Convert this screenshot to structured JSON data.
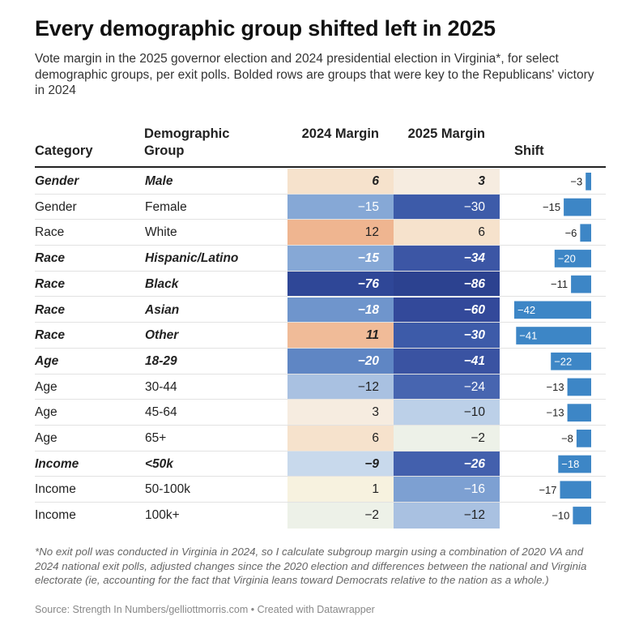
{
  "title": "Every demographic group shifted left in 2025",
  "subtitle": "Vote margin in the 2025 governor election and 2024 presidential election in Virginia*, for select demographic groups, per exit polls. Bolded rows are groups that were key to the Republicans' victory in 2024",
  "headers": {
    "category": "Category",
    "group": "Demographic Group",
    "margin_2024": "2024 Margin",
    "margin_2025": "2025 Margin",
    "shift": "Shift"
  },
  "colors": {
    "shift_bar": "#3d86c6",
    "header_rule": "#222222",
    "row_separator": "#e2e2e2"
  },
  "chart_data": {
    "type": "table",
    "title": "Every demographic group shifted left in 2025",
    "columns": [
      "Category",
      "Demographic Group",
      "2024 Margin",
      "2025 Margin",
      "Shift"
    ],
    "shift_range": [
      -42,
      0
    ],
    "rows": [
      {
        "category": "Gender",
        "group": "Male",
        "m2024": 6,
        "m2025": 3,
        "shift": -3,
        "bold": true,
        "c2024": "#f6e2cc",
        "c2025": "#f6ece0",
        "d2024": "6",
        "d2025": "3",
        "dshift": "−3"
      },
      {
        "category": "Gender",
        "group": "Female",
        "m2024": -15,
        "m2025": -30,
        "shift": -15,
        "bold": false,
        "c2024": "#86a8d6",
        "c2025": "#3d5ba9",
        "d2024": "−15",
        "d2025": "−30",
        "dshift": "−15"
      },
      {
        "category": "Race",
        "group": "White",
        "m2024": 12,
        "m2025": 6,
        "shift": -6,
        "bold": false,
        "c2024": "#efb590",
        "c2025": "#f6e2cc",
        "d2024": "12",
        "d2025": "6",
        "dshift": "−6"
      },
      {
        "category": "Race",
        "group": "Hispanic/Latino",
        "m2024": -15,
        "m2025": -34,
        "shift": -20,
        "bold": true,
        "c2024": "#86a8d6",
        "c2025": "#3c56a5",
        "d2024": "−15",
        "d2025": "−34",
        "dshift": "−20"
      },
      {
        "category": "Race",
        "group": "Black",
        "m2024": -76,
        "m2025": -86,
        "shift": -11,
        "bold": true,
        "c2024": "#2f4797",
        "c2025": "#2c4290",
        "d2024": "−76",
        "d2025": "−86",
        "dshift": "−11"
      },
      {
        "category": "Race",
        "group": "Asian",
        "m2024": -18,
        "m2025": -60,
        "shift": -42,
        "bold": true,
        "c2024": "#6f95cc",
        "c2025": "#33499a",
        "d2024": "−18",
        "d2025": "−60",
        "dshift": "−42"
      },
      {
        "category": "Race",
        "group": "Other",
        "m2024": 11,
        "m2025": -30,
        "shift": -41,
        "bold": true,
        "c2024": "#f0bb98",
        "c2025": "#3d5ba9",
        "d2024": "11",
        "d2025": "−30",
        "dshift": "−41"
      },
      {
        "category": "Age",
        "group": "18-29",
        "m2024": -20,
        "m2025": -41,
        "shift": -22,
        "bold": true,
        "c2024": "#5f86c4",
        "c2025": "#3a53a2",
        "d2024": "−20",
        "d2025": "−41",
        "dshift": "−22"
      },
      {
        "category": "Age",
        "group": "30-44",
        "m2024": -12,
        "m2025": -24,
        "shift": -13,
        "bold": false,
        "c2024": "#a9c1e1",
        "c2025": "#4765b0",
        "d2024": "−12",
        "d2025": "−24",
        "dshift": "−13"
      },
      {
        "category": "Age",
        "group": "45-64",
        "m2024": 3,
        "m2025": -10,
        "shift": -13,
        "bold": false,
        "c2024": "#f6ece0",
        "c2025": "#bcd0e8",
        "d2024": "3",
        "d2025": "−10",
        "dshift": "−13"
      },
      {
        "category": "Age",
        "group": "65+",
        "m2024": 6,
        "m2025": -2,
        "shift": -8,
        "bold": false,
        "c2024": "#f6e2cc",
        "c2025": "#edf1e8",
        "d2024": "6",
        "d2025": "−2",
        "dshift": "−8"
      },
      {
        "category": "Income",
        "group": "<50k",
        "m2024": -9,
        "m2025": -26,
        "shift": -18,
        "bold": true,
        "c2024": "#c8d9ec",
        "c2025": "#4360ad",
        "d2024": "−9",
        "d2025": "−26",
        "dshift": "−18"
      },
      {
        "category": "Income",
        "group": "50-100k",
        "m2024": 1,
        "m2025": -16,
        "shift": -17,
        "bold": false,
        "c2024": "#f7f2df",
        "c2025": "#7da0d2",
        "d2024": "1",
        "d2025": "−16",
        "dshift": "−17"
      },
      {
        "category": "Income",
        "group": "100k+",
        "m2024": -2,
        "m2025": -12,
        "shift": -10,
        "bold": false,
        "c2024": "#edf1e8",
        "c2025": "#a9c1e1",
        "d2024": "−2",
        "d2025": "−12",
        "dshift": "−10"
      }
    ]
  },
  "footnote": "*No exit poll was conducted in Virginia in 2024, so I calculate subgroup margin using a combination of 2020 VA and 2024 national exit polls, adjusted changes since the 2020 election and differences between the national and Virginia electorate (ie, accounting for the fact that Virginia leans toward Democrats relative to the nation as a whole.)",
  "source": "Source: Strength In Numbers/gelliottmorris.com • Created with Datawrapper"
}
